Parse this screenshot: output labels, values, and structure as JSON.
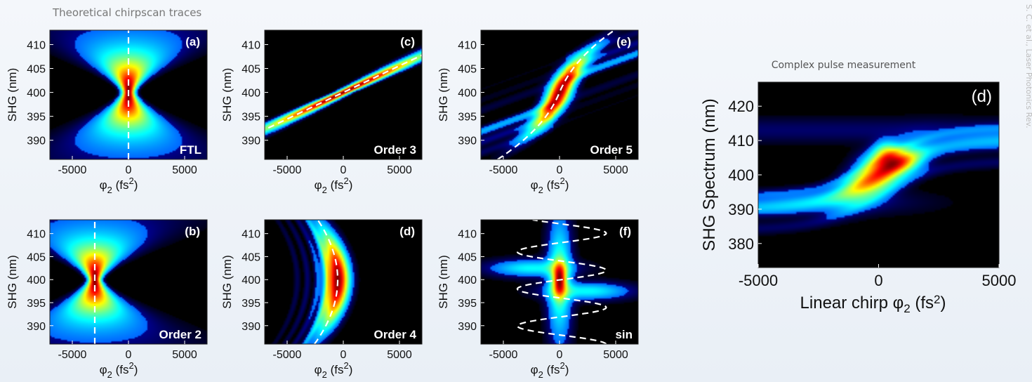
{
  "page": {
    "title": "Theoretical chirpscan traces",
    "side_note": "S. C. et al., Laser Photonics Rev."
  },
  "chart_data": [
    {
      "type": "heatmap",
      "panel": "(a)",
      "label": "FTL",
      "phase": "ftl",
      "xlabel_sym": "φ",
      "xlabel_sub": "2",
      "xlabel_unit": "(fs",
      "xlabel_sup": "2",
      "xlabel_end": ")",
      "ylabel": "SHG (nm)",
      "xlim": [
        -7000,
        7000
      ],
      "ylim": [
        386,
        413
      ],
      "xticks": [
        "-5000",
        "0",
        "5000"
      ],
      "xtick_values": [
        -5000,
        0,
        5000
      ],
      "yticks": [
        "410",
        "405",
        "400",
        "395",
        "390"
      ],
      "ytick_values": [
        410,
        405,
        400,
        395,
        390
      ]
    },
    {
      "type": "heatmap",
      "panel": "(c)",
      "label": "Order 3",
      "phase": "order3",
      "xlabel_sym": "φ",
      "xlabel_sub": "2",
      "xlabel_unit": "(fs",
      "xlabel_sup": "2",
      "xlabel_end": ")",
      "ylabel": "SHG (nm)",
      "xlim": [
        -7000,
        7000
      ],
      "ylim": [
        386,
        413
      ],
      "xticks": [
        "-5000",
        "0",
        "5000"
      ],
      "xtick_values": [
        -5000,
        0,
        5000
      ],
      "yticks": [
        "410",
        "405",
        "400",
        "395",
        "390"
      ],
      "ytick_values": [
        410,
        405,
        400,
        395,
        390
      ]
    },
    {
      "type": "heatmap",
      "panel": "(e)",
      "label": "Order 5",
      "phase": "order5",
      "xlabel_sym": "φ",
      "xlabel_sub": "2",
      "xlabel_unit": "(fs",
      "xlabel_sup": "2",
      "xlabel_end": ")",
      "ylabel": "SHG (nm)",
      "xlim": [
        -7000,
        7000
      ],
      "ylim": [
        386,
        413
      ],
      "xticks": [
        "-5000",
        "0",
        "5000"
      ],
      "xtick_values": [
        -5000,
        0,
        5000
      ],
      "yticks": [
        "410",
        "405",
        "400",
        "395",
        "390"
      ],
      "ytick_values": [
        410,
        405,
        400,
        395,
        390
      ]
    },
    {
      "type": "heatmap",
      "panel": "(b)",
      "label": "Order 2",
      "phase": "order2",
      "xlabel_sym": "φ",
      "xlabel_sub": "2",
      "xlabel_unit": "(fs",
      "xlabel_sup": "2",
      "xlabel_end": ")",
      "ylabel": "SHG (nm)",
      "xlim": [
        -7000,
        7000
      ],
      "ylim": [
        386,
        413
      ],
      "xticks": [
        "-5000",
        "0",
        "5000"
      ],
      "xtick_values": [
        -5000,
        0,
        5000
      ],
      "yticks": [
        "410",
        "405",
        "400",
        "395",
        "390"
      ],
      "ytick_values": [
        410,
        405,
        400,
        395,
        390
      ]
    },
    {
      "type": "heatmap",
      "panel": "(d)",
      "label": "Order 4",
      "phase": "order4",
      "xlabel_sym": "φ",
      "xlabel_sub": "2",
      "xlabel_unit": "(fs",
      "xlabel_sup": "2",
      "xlabel_end": ")",
      "ylabel": "SHG (nm)",
      "xlim": [
        -7000,
        7000
      ],
      "ylim": [
        386,
        413
      ],
      "xticks": [
        "-5000",
        "0",
        "5000"
      ],
      "xtick_values": [
        -5000,
        0,
        5000
      ],
      "yticks": [
        "410",
        "405",
        "400",
        "395",
        "390"
      ],
      "ytick_values": [
        410,
        405,
        400,
        395,
        390
      ]
    },
    {
      "type": "heatmap",
      "panel": "(f)",
      "label": "sin",
      "phase": "sin",
      "xlabel_sym": "φ",
      "xlabel_sub": "2",
      "xlabel_unit": "(fs",
      "xlabel_sup": "2",
      "xlabel_end": ")",
      "ylabel": "SHG (nm)",
      "xlim": [
        -7000,
        7000
      ],
      "ylim": [
        386,
        413
      ],
      "xticks": [
        "-5000",
        "0",
        "5000"
      ],
      "xtick_values": [
        -5000,
        0,
        5000
      ],
      "yticks": [
        "410",
        "405",
        "400",
        "395",
        "390"
      ],
      "ytick_values": [
        410,
        405,
        400,
        395,
        390
      ]
    },
    {
      "type": "heatmap",
      "panel": "(d)",
      "title": "Complex pulse measurement",
      "phase": "complex",
      "xlabel_pre": "Linear chirp ",
      "xlabel_sym": "φ",
      "xlabel_sub": "2",
      "xlabel_unit": "(fs",
      "xlabel_sup": "2",
      "xlabel_end": ")",
      "ylabel": "SHG Spectrum (nm)",
      "xlim": [
        -5000,
        5000
      ],
      "ylim": [
        373,
        427
      ],
      "xticks": [
        "-5000",
        "0",
        "5000"
      ],
      "xtick_values": [
        -5000,
        0,
        5000
      ],
      "yticks": [
        "420",
        "410",
        "400",
        "390",
        "380"
      ],
      "ytick_values": [
        420,
        410,
        400,
        390,
        380
      ]
    }
  ],
  "colormap": "jet",
  "overlay_line_color": "#ffffff"
}
